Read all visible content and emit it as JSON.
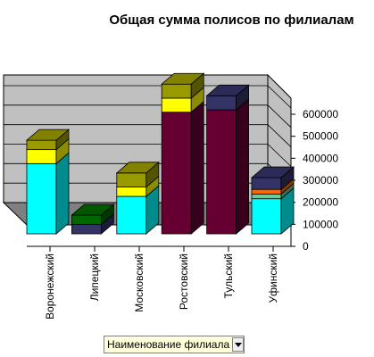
{
  "chart_data": {
    "type": "bar",
    "title": "Общая сумма полисов по филиалам",
    "categories": [
      "Воронежский",
      "Липецкий",
      "Московский",
      "Ростовский",
      "Тульский",
      "Уфинский"
    ],
    "series": [
      {
        "color": "#00ffff",
        "values": [
          300000,
          0,
          160000,
          0,
          0,
          150000
        ]
      },
      {
        "color": "#660033",
        "values": [
          0,
          0,
          0,
          520000,
          530000,
          0
        ]
      },
      {
        "color": "#66cc99",
        "values": [
          0,
          0,
          0,
          0,
          0,
          20000
        ]
      },
      {
        "color": "#ff6600",
        "values": [
          0,
          0,
          0,
          0,
          0,
          20000
        ]
      },
      {
        "color": "#333366",
        "values": [
          0,
          40000,
          0,
          0,
          60000,
          50000
        ]
      },
      {
        "color": "#006600",
        "values": [
          0,
          40000,
          0,
          0,
          0,
          0
        ]
      },
      {
        "color": "#ffff00",
        "values": [
          60000,
          0,
          40000,
          60000,
          0,
          0
        ]
      },
      {
        "color": "#999900",
        "values": [
          40000,
          0,
          60000,
          60000,
          0,
          0
        ]
      }
    ],
    "y_ticks": [
      0,
      100000,
      200000,
      300000,
      400000,
      500000,
      600000
    ],
    "ylim": [
      0,
      600000
    ],
    "grid": true,
    "legend": "none"
  },
  "controls": {
    "field_button_label": "Наименование филиала"
  }
}
